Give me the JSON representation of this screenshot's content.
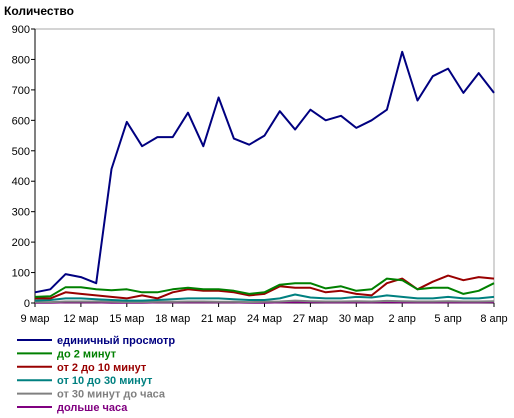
{
  "chart_data": {
    "type": "line",
    "title": "",
    "ylabel": "Количество",
    "xlabel": "",
    "ylim": [
      0,
      900
    ],
    "y_ticks": [
      0,
      100,
      200,
      300,
      400,
      500,
      600,
      700,
      800,
      900
    ],
    "x_ticks": [
      "9 мар",
      "12 мар",
      "15 мар",
      "18 мар",
      "21 мар",
      "24 мар",
      "27 мар",
      "30 мар",
      "2 апр",
      "5 апр",
      "8 апр"
    ],
    "grid": false,
    "legend_position": "bottom-left",
    "series": [
      {
        "name": "единичный просмотр",
        "color": "#000080",
        "values": [
          35,
          45,
          95,
          85,
          65,
          440,
          595,
          515,
          545,
          545,
          625,
          515,
          675,
          540,
          520,
          550,
          630,
          570,
          635,
          600,
          615,
          575,
          600,
          635,
          825,
          665,
          745,
          770,
          690,
          755,
          690
        ]
      },
      {
        "name": "до 2 минут",
        "color": "#008000",
        "values": [
          20,
          22,
          52,
          52,
          45,
          42,
          45,
          35,
          35,
          45,
          50,
          45,
          45,
          40,
          30,
          35,
          60,
          65,
          65,
          48,
          55,
          40,
          45,
          80,
          75,
          45,
          50,
          50,
          30,
          40,
          65
        ]
      },
      {
        "name": "от 2 до 10 минут",
        "color": "#990000",
        "values": [
          15,
          15,
          35,
          30,
          25,
          20,
          15,
          25,
          15,
          35,
          45,
          40,
          40,
          35,
          25,
          30,
          55,
          50,
          50,
          35,
          40,
          30,
          25,
          65,
          80,
          45,
          70,
          90,
          75,
          85,
          80
        ]
      },
      {
        "name": "от 10 до 30 минут",
        "color": "#008080",
        "values": [
          8,
          10,
          15,
          15,
          12,
          10,
          8,
          8,
          10,
          12,
          15,
          15,
          15,
          12,
          10,
          10,
          15,
          28,
          18,
          15,
          15,
          20,
          18,
          25,
          20,
          15,
          15,
          20,
          15,
          15,
          20
        ]
      },
      {
        "name": "от 30 минут до часа",
        "color": "#808080",
        "values": [
          3,
          3,
          5,
          5,
          5,
          4,
          3,
          3,
          4,
          4,
          5,
          5,
          4,
          4,
          3,
          4,
          5,
          8,
          6,
          5,
          5,
          6,
          5,
          7,
          6,
          5,
          5,
          6,
          5,
          5,
          6
        ]
      },
      {
        "name": "дольше часа",
        "color": "#800080",
        "values": [
          1,
          1,
          2,
          2,
          2,
          1,
          1,
          1,
          2,
          2,
          2,
          2,
          2,
          2,
          1,
          1,
          2,
          3,
          3,
          2,
          2,
          2,
          2,
          3,
          2,
          2,
          2,
          2,
          2,
          2,
          3
        ]
      }
    ]
  }
}
